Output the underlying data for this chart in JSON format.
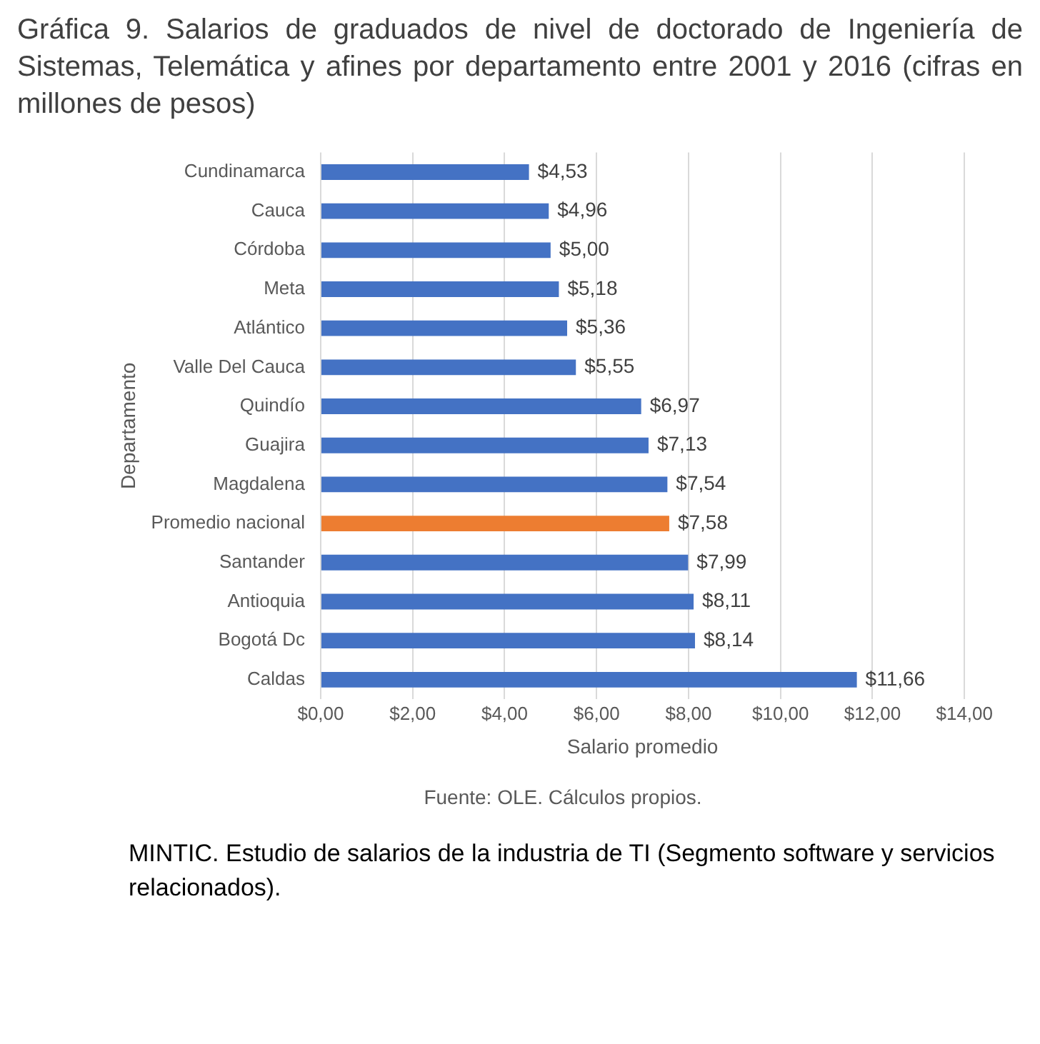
{
  "chart_data": {
    "type": "bar",
    "orientation": "horizontal",
    "title": "Gráfica 9. Salarios de graduados de nivel de doctorado de Ingeniería de Sistemas, Telemática y afines por departamento entre 2001 y 2016 (cifras en millones de pesos)",
    "xlabel": "Salario promedio",
    "ylabel": "Departamento",
    "categories": [
      "Cundinamarca",
      "Cauca",
      "Córdoba",
      "Meta",
      "Atlántico",
      "Valle Del Cauca",
      "Quindío",
      "Guajira",
      "Magdalena",
      "Promedio nacional",
      "Santander",
      "Antioquia",
      "Bogotá Dc",
      "Caldas"
    ],
    "values": [
      4.53,
      4.96,
      5.0,
      5.18,
      5.36,
      5.55,
      6.97,
      7.13,
      7.54,
      7.58,
      7.99,
      8.11,
      8.14,
      11.66
    ],
    "value_labels": [
      "$4,53",
      "$4,96",
      "$5,00",
      "$5,18",
      "$5,36",
      "$5,55",
      "$6,97",
      "$7,13",
      "$7,54",
      "$7,58",
      "$7,99",
      "$8,11",
      "$8,14",
      "$11,66"
    ],
    "colors": [
      "#4472c4",
      "#4472c4",
      "#4472c4",
      "#4472c4",
      "#4472c4",
      "#4472c4",
      "#4472c4",
      "#4472c4",
      "#4472c4",
      "#ed7d31",
      "#4472c4",
      "#4472c4",
      "#4472c4",
      "#4472c4"
    ],
    "xlim": [
      0,
      14
    ],
    "xticks": [
      {
        "value": 0,
        "label": "$0,00"
      },
      {
        "value": 2,
        "label": "$2,00"
      },
      {
        "value": 4,
        "label": "$4,00"
      },
      {
        "value": 6,
        "label": "$6,00"
      },
      {
        "value": 8,
        "label": "$8,00"
      },
      {
        "value": 10,
        "label": "$10,00"
      },
      {
        "value": 12,
        "label": "$12,00"
      },
      {
        "value": 14,
        "label": "$14,00"
      }
    ],
    "grid": "x",
    "legend": false,
    "annotations": [
      "Fuente: OLE. Cálculos propios.",
      "MINTIC. Estudio de salarios de la industria de TI  (Segmento software y servicios relacionados)."
    ]
  }
}
